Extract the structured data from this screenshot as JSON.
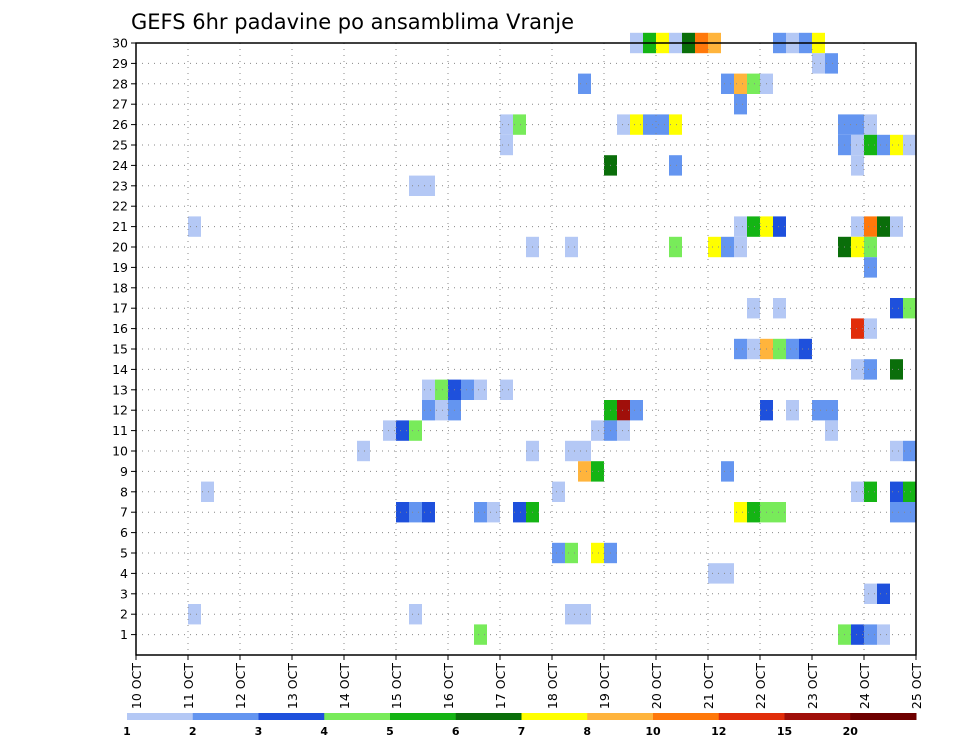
{
  "chart_data": {
    "type": "heatmap",
    "title": "GEFS 6hr padavine po ansamblima Vranje",
    "xlabel": "",
    "ylabel": "",
    "y_tick_labels": [
      "1",
      "2",
      "3",
      "4",
      "5",
      "6",
      "7",
      "8",
      "9",
      "10",
      "11",
      "12",
      "13",
      "14",
      "15",
      "16",
      "17",
      "18",
      "19",
      "20",
      "21",
      "22",
      "23",
      "24",
      "25",
      "26",
      "27",
      "28",
      "29",
      "30"
    ],
    "x_tick_labels": [
      "10 OCT",
      "11 OCT",
      "12 OCT",
      "13 OCT",
      "14 OCT",
      "15 OCT",
      "16 OCT",
      "17 OCT",
      "18 OCT",
      "19 OCT",
      "20 OCT",
      "21 OCT",
      "22 OCT",
      "23 OCT",
      "24 OCT",
      "25 OCT"
    ],
    "x_range_days": [
      10,
      25
    ],
    "y_range": [
      0,
      30
    ],
    "legend": {
      "colors": [
        "#b4c8f5",
        "#6495f0",
        "#1e50dc",
        "#78eb5a",
        "#14b414",
        "#0a6e0a",
        "#ffff00",
        "#ffb43c",
        "#ff780a",
        "#e12d0a",
        "#a00f0a",
        "#6e0000"
      ],
      "labels": [
        "1",
        "2",
        "3",
        "4",
        "5",
        "6",
        "7",
        "8",
        "10",
        "12",
        "15",
        "20"
      ]
    },
    "cells": [
      {
        "m": 30,
        "d": 19.5,
        "c": 1
      },
      {
        "m": 30,
        "d": 19.75,
        "c": 5
      },
      {
        "m": 30,
        "d": 20,
        "c": 7
      },
      {
        "m": 30,
        "d": 20.25,
        "c": 1
      },
      {
        "m": 30,
        "d": 20.5,
        "c": 6
      },
      {
        "m": 30,
        "d": 20.75,
        "c": 9
      },
      {
        "m": 30,
        "d": 21,
        "c": 8
      },
      {
        "m": 30,
        "d": 22.25,
        "c": 2
      },
      {
        "m": 30,
        "d": 22.5,
        "c": 1
      },
      {
        "m": 30,
        "d": 22.75,
        "c": 2
      },
      {
        "m": 30,
        "d": 23,
        "c": 7
      },
      {
        "m": 29,
        "d": 23,
        "c": 1
      },
      {
        "m": 29,
        "d": 23.25,
        "c": 2
      },
      {
        "m": 28,
        "d": 18.5,
        "c": 2
      },
      {
        "m": 28,
        "d": 21.25,
        "c": 2
      },
      {
        "m": 28,
        "d": 21.5,
        "c": 8
      },
      {
        "m": 28,
        "d": 21.75,
        "c": 4
      },
      {
        "m": 28,
        "d": 22,
        "c": 1
      },
      {
        "m": 27,
        "d": 21.5,
        "c": 2
      },
      {
        "m": 26,
        "d": 17,
        "c": 1
      },
      {
        "m": 26,
        "d": 17.25,
        "c": 4
      },
      {
        "m": 26,
        "d": 19.25,
        "c": 1
      },
      {
        "m": 26,
        "d": 19.5,
        "c": 7
      },
      {
        "m": 26,
        "d": 19.75,
        "c": 2
      },
      {
        "m": 26,
        "d": 20,
        "c": 2
      },
      {
        "m": 26,
        "d": 20.25,
        "c": 7
      },
      {
        "m": 26,
        "d": 23.5,
        "c": 2
      },
      {
        "m": 26,
        "d": 23.75,
        "c": 2
      },
      {
        "m": 26,
        "d": 24,
        "c": 1
      },
      {
        "m": 25,
        "d": 17,
        "c": 1
      },
      {
        "m": 25,
        "d": 23.5,
        "c": 2
      },
      {
        "m": 25,
        "d": 23.75,
        "c": 1
      },
      {
        "m": 25,
        "d": 24,
        "c": 5
      },
      {
        "m": 25,
        "d": 24.25,
        "c": 2
      },
      {
        "m": 25,
        "d": 24.5,
        "c": 7
      },
      {
        "m": 25,
        "d": 24.75,
        "c": 1
      },
      {
        "m": 24,
        "d": 19,
        "c": 6
      },
      {
        "m": 24,
        "d": 20.25,
        "c": 2
      },
      {
        "m": 24,
        "d": 23.75,
        "c": 1
      },
      {
        "m": 23,
        "d": 15.25,
        "c": 1
      },
      {
        "m": 23,
        "d": 15.5,
        "c": 1
      },
      {
        "m": 21,
        "d": 11,
        "c": 1
      },
      {
        "m": 21,
        "d": 21.5,
        "c": 1
      },
      {
        "m": 21,
        "d": 21.75,
        "c": 5
      },
      {
        "m": 21,
        "d": 22,
        "c": 7
      },
      {
        "m": 21,
        "d": 22.25,
        "c": 3
      },
      {
        "m": 21,
        "d": 23.75,
        "c": 1
      },
      {
        "m": 21,
        "d": 24,
        "c": 9
      },
      {
        "m": 21,
        "d": 24.25,
        "c": 6
      },
      {
        "m": 21,
        "d": 24.5,
        "c": 1
      },
      {
        "m": 20,
        "d": 17.5,
        "c": 1
      },
      {
        "m": 20,
        "d": 18.25,
        "c": 1
      },
      {
        "m": 20,
        "d": 20.25,
        "c": 4
      },
      {
        "m": 20,
        "d": 21,
        "c": 7
      },
      {
        "m": 20,
        "d": 21.25,
        "c": 2
      },
      {
        "m": 20,
        "d": 21.5,
        "c": 1
      },
      {
        "m": 20,
        "d": 23.5,
        "c": 6
      },
      {
        "m": 20,
        "d": 23.75,
        "c": 7
      },
      {
        "m": 20,
        "d": 24,
        "c": 4
      },
      {
        "m": 19,
        "d": 24,
        "c": 2
      },
      {
        "m": 17,
        "d": 21.75,
        "c": 1
      },
      {
        "m": 17,
        "d": 22.25,
        "c": 1
      },
      {
        "m": 17,
        "d": 24.5,
        "c": 3
      },
      {
        "m": 17,
        "d": 24.75,
        "c": 4
      },
      {
        "m": 16,
        "d": 23.75,
        "c": 10
      },
      {
        "m": 16,
        "d": 24,
        "c": 1
      },
      {
        "m": 15,
        "d": 21.5,
        "c": 2
      },
      {
        "m": 15,
        "d": 21.75,
        "c": 1
      },
      {
        "m": 15,
        "d": 22,
        "c": 8
      },
      {
        "m": 15,
        "d": 22.25,
        "c": 4
      },
      {
        "m": 15,
        "d": 22.5,
        "c": 2
      },
      {
        "m": 15,
        "d": 22.75,
        "c": 3
      },
      {
        "m": 14,
        "d": 23.75,
        "c": 1
      },
      {
        "m": 14,
        "d": 24,
        "c": 2
      },
      {
        "m": 14,
        "d": 24.5,
        "c": 6
      },
      {
        "m": 13,
        "d": 15.5,
        "c": 1
      },
      {
        "m": 13,
        "d": 15.75,
        "c": 4
      },
      {
        "m": 13,
        "d": 16,
        "c": 3
      },
      {
        "m": 13,
        "d": 16.25,
        "c": 2
      },
      {
        "m": 13,
        "d": 16.5,
        "c": 1
      },
      {
        "m": 13,
        "d": 17,
        "c": 1
      },
      {
        "m": 12,
        "d": 15.5,
        "c": 2
      },
      {
        "m": 12,
        "d": 15.75,
        "c": 1
      },
      {
        "m": 12,
        "d": 16,
        "c": 2
      },
      {
        "m": 12,
        "d": 19,
        "c": 5
      },
      {
        "m": 12,
        "d": 19.25,
        "c": 11
      },
      {
        "m": 12,
        "d": 19.5,
        "c": 2
      },
      {
        "m": 12,
        "d": 22,
        "c": 3
      },
      {
        "m": 12,
        "d": 22.5,
        "c": 1
      },
      {
        "m": 12,
        "d": 23,
        "c": 2
      },
      {
        "m": 12,
        "d": 23.25,
        "c": 2
      },
      {
        "m": 11,
        "d": 14.75,
        "c": 1
      },
      {
        "m": 11,
        "d": 15,
        "c": 3
      },
      {
        "m": 11,
        "d": 15.25,
        "c": 4
      },
      {
        "m": 11,
        "d": 18.75,
        "c": 1
      },
      {
        "m": 11,
        "d": 19,
        "c": 2
      },
      {
        "m": 11,
        "d": 19.25,
        "c": 1
      },
      {
        "m": 11,
        "d": 23.25,
        "c": 1
      },
      {
        "m": 10,
        "d": 14.25,
        "c": 1
      },
      {
        "m": 10,
        "d": 17.5,
        "c": 1
      },
      {
        "m": 10,
        "d": 18.25,
        "c": 1
      },
      {
        "m": 10,
        "d": 18.5,
        "c": 1
      },
      {
        "m": 10,
        "d": 24.5,
        "c": 1
      },
      {
        "m": 10,
        "d": 24.75,
        "c": 2
      },
      {
        "m": 9,
        "d": 18.5,
        "c": 8
      },
      {
        "m": 9,
        "d": 18.75,
        "c": 5
      },
      {
        "m": 9,
        "d": 21.25,
        "c": 2
      },
      {
        "m": 8,
        "d": 11.25,
        "c": 1
      },
      {
        "m": 8,
        "d": 18,
        "c": 1
      },
      {
        "m": 8,
        "d": 23.75,
        "c": 1
      },
      {
        "m": 8,
        "d": 24,
        "c": 5
      },
      {
        "m": 8,
        "d": 24.5,
        "c": 3
      },
      {
        "m": 8,
        "d": 24.75,
        "c": 5
      },
      {
        "m": 7,
        "d": 15,
        "c": 3
      },
      {
        "m": 7,
        "d": 15.25,
        "c": 2
      },
      {
        "m": 7,
        "d": 15.5,
        "c": 3
      },
      {
        "m": 7,
        "d": 16.5,
        "c": 2
      },
      {
        "m": 7,
        "d": 16.75,
        "c": 1
      },
      {
        "m": 7,
        "d": 17.25,
        "c": 3
      },
      {
        "m": 7,
        "d": 17.5,
        "c": 5
      },
      {
        "m": 7,
        "d": 21.5,
        "c": 7
      },
      {
        "m": 7,
        "d": 21.75,
        "c": 5
      },
      {
        "m": 7,
        "d": 22,
        "c": 4
      },
      {
        "m": 7,
        "d": 22.25,
        "c": 4
      },
      {
        "m": 7,
        "d": 24.5,
        "c": 2
      },
      {
        "m": 7,
        "d": 24.75,
        "c": 2
      },
      {
        "m": 5,
        "d": 18,
        "c": 2
      },
      {
        "m": 5,
        "d": 18.25,
        "c": 4
      },
      {
        "m": 5,
        "d": 18.75,
        "c": 7
      },
      {
        "m": 5,
        "d": 19,
        "c": 2
      },
      {
        "m": 4,
        "d": 21,
        "c": 1
      },
      {
        "m": 4,
        "d": 21.25,
        "c": 1
      },
      {
        "m": 3,
        "d": 24,
        "c": 1
      },
      {
        "m": 3,
        "d": 24.25,
        "c": 3
      },
      {
        "m": 2,
        "d": 11,
        "c": 1
      },
      {
        "m": 2,
        "d": 15.25,
        "c": 1
      },
      {
        "m": 2,
        "d": 18.25,
        "c": 1
      },
      {
        "m": 2,
        "d": 18.5,
        "c": 1
      },
      {
        "m": 1,
        "d": 16.5,
        "c": 4
      },
      {
        "m": 1,
        "d": 23.5,
        "c": 4
      },
      {
        "m": 1,
        "d": 23.75,
        "c": 3
      },
      {
        "m": 1,
        "d": 24,
        "c": 2
      },
      {
        "m": 1,
        "d": 24.25,
        "c": 1
      }
    ]
  }
}
